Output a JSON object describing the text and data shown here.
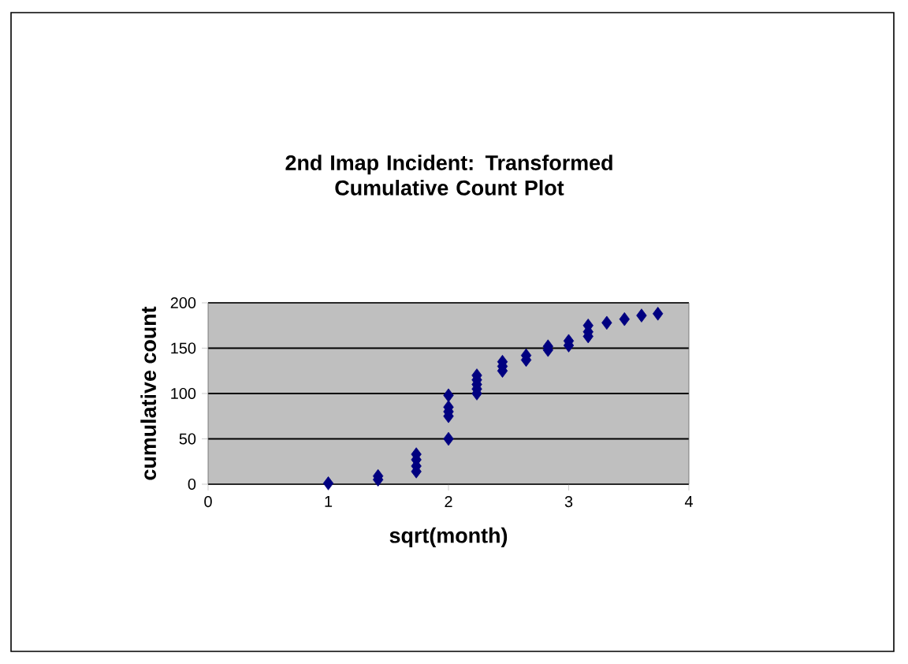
{
  "chart_data": {
    "type": "scatter",
    "title": "2nd Imap Incident: Transformed Cumulative Count Plot",
    "xlabel": "sqrt(month)",
    "ylabel": "cumulative count",
    "xlim": [
      0,
      4
    ],
    "xticks": [
      0,
      1,
      2,
      3,
      4
    ],
    "ylim": [
      0,
      200
    ],
    "yticks": [
      0,
      50,
      100,
      150,
      200
    ],
    "grid": "y",
    "marker": "diamond",
    "series": [
      {
        "color": "#000080",
        "x": [
          1,
          1.414,
          1.414,
          1.732,
          1.732,
          1.732,
          1.732,
          2,
          2,
          2,
          2,
          2,
          2.236,
          2.236,
          2.236,
          2.236,
          2.236,
          2.449,
          2.449,
          2.449,
          2.646,
          2.646,
          2.828,
          2.828,
          3,
          3,
          3.162,
          3.162,
          3.162,
          3.317,
          3.464,
          3.606,
          3.742
        ],
        "values": [
          1,
          5,
          9,
          14,
          20,
          27,
          33,
          50,
          75,
          80,
          85,
          98,
          100,
          105,
          110,
          115,
          120,
          125,
          130,
          135,
          137,
          142,
          148,
          152,
          153,
          158,
          163,
          168,
          175,
          178,
          182,
          186,
          188
        ]
      }
    ]
  }
}
